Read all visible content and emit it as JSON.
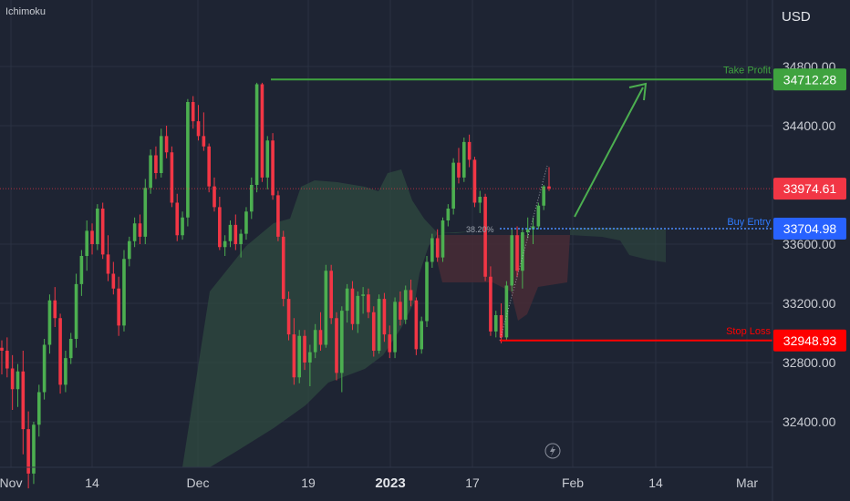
{
  "indicator_label": "Ichimoku",
  "currency": "USD",
  "colors": {
    "background": "#1e2433",
    "grid": "#2a3142",
    "text": "#c9ccd3",
    "up": "#4caf50",
    "down": "#f23645",
    "take_profit": "#3fa33f",
    "buy_entry": "#2862ff",
    "stop_loss": "#ff0000",
    "cloud_green": "#2f4a40",
    "cloud_red": "#4a2c36",
    "current_price": "#f23645"
  },
  "chart_data": {
    "type": "candlestick",
    "x_ticks": [
      "Nov",
      "14",
      "Dec",
      "19",
      "2023",
      "17",
      "Feb",
      "14",
      "Mar"
    ],
    "y_ticks": [
      "34800.00",
      "34400.00",
      "33600.00",
      "33200.00",
      "32800.00",
      "32400.00"
    ],
    "ylim": [
      32000,
      35100
    ],
    "candles": [
      [
        32900,
        32950,
        32720,
        32880
      ],
      [
        32880,
        32970,
        32700,
        32760
      ],
      [
        32760,
        32850,
        32480,
        32620
      ],
      [
        32620,
        32790,
        32500,
        32740
      ],
      [
        32740,
        32880,
        32180,
        32350
      ],
      [
        32350,
        32470,
        31950,
        32050
      ],
      [
        32050,
        32400,
        31980,
        32380
      ],
      [
        32380,
        32650,
        32300,
        32600
      ],
      [
        32600,
        32960,
        32550,
        32920
      ],
      [
        32920,
        33260,
        32860,
        33220
      ],
      [
        33220,
        33310,
        33040,
        33100
      ],
      [
        33100,
        33130,
        32590,
        32650
      ],
      [
        32650,
        32880,
        32600,
        32830
      ],
      [
        32830,
        33000,
        32790,
        32960
      ],
      [
        32960,
        33400,
        32900,
        33330
      ],
      [
        33330,
        33560,
        33250,
        33520
      ],
      [
        33520,
        33760,
        33420,
        33690
      ],
      [
        33690,
        33740,
        33530,
        33600
      ],
      [
        33600,
        33870,
        33560,
        33840
      ],
      [
        33840,
        33880,
        33500,
        33530
      ],
      [
        33530,
        33660,
        33350,
        33400
      ],
      [
        33400,
        33480,
        33260,
        33300
      ],
      [
        33300,
        33380,
        32980,
        33050
      ],
      [
        33050,
        33560,
        33010,
        33500
      ],
      [
        33500,
        33650,
        33450,
        33620
      ],
      [
        33620,
        33780,
        33580,
        33740
      ],
      [
        33740,
        33800,
        33600,
        33650
      ],
      [
        33650,
        34040,
        33600,
        33980
      ],
      [
        33980,
        34240,
        33940,
        34200
      ],
      [
        34200,
        34260,
        34040,
        34080
      ],
      [
        34080,
        34380,
        34050,
        34330
      ],
      [
        34330,
        34400,
        34180,
        34220
      ],
      [
        34220,
        34260,
        33850,
        33880
      ],
      [
        33880,
        33940,
        33620,
        33660
      ],
      [
        33660,
        33820,
        33630,
        33780
      ],
      [
        33780,
        34580,
        33720,
        34560
      ],
      [
        34560,
        34600,
        34380,
        34430
      ],
      [
        34430,
        34540,
        34300,
        34330
      ],
      [
        34330,
        34490,
        34230,
        34260
      ],
      [
        34260,
        34280,
        33950,
        33990
      ],
      [
        33990,
        34050,
        33820,
        33850
      ],
      [
        33850,
        33920,
        33560,
        33580
      ],
      [
        33580,
        33660,
        33520,
        33620
      ],
      [
        33620,
        33760,
        33580,
        33730
      ],
      [
        33730,
        33800,
        33560,
        33600
      ],
      [
        33600,
        33700,
        33510,
        33670
      ],
      [
        33670,
        33850,
        33630,
        33820
      ],
      [
        33820,
        34050,
        33770,
        34000
      ],
      [
        34000,
        34690,
        33950,
        34680
      ],
      [
        34680,
        34690,
        34020,
        34050
      ],
      [
        34050,
        34330,
        33970,
        34300
      ],
      [
        34300,
        34350,
        33900,
        33930
      ],
      [
        33930,
        33960,
        33620,
        33650
      ],
      [
        33650,
        33690,
        33180,
        33230
      ],
      [
        33230,
        33280,
        32950,
        32990
      ],
      [
        32990,
        33100,
        32650,
        32700
      ],
      [
        32700,
        33020,
        32660,
        32980
      ],
      [
        32980,
        33020,
        32750,
        32800
      ],
      [
        32800,
        32920,
        32640,
        32870
      ],
      [
        32870,
        33060,
        32830,
        33020
      ],
      [
        33020,
        33140,
        32880,
        32920
      ],
      [
        32920,
        33460,
        32900,
        33420
      ],
      [
        33420,
        33460,
        33060,
        33100
      ],
      [
        33100,
        33140,
        32680,
        32730
      ],
      [
        32730,
        33180,
        32600,
        33150
      ],
      [
        33150,
        33330,
        33070,
        33300
      ],
      [
        33300,
        33350,
        33020,
        33060
      ],
      [
        33060,
        33280,
        33000,
        33250
      ],
      [
        33250,
        33310,
        33130,
        33260
      ],
      [
        33260,
        33300,
        33100,
        33140
      ],
      [
        33140,
        33180,
        32840,
        32880
      ],
      [
        32880,
        33260,
        32860,
        33230
      ],
      [
        33230,
        33270,
        32940,
        32990
      ],
      [
        32990,
        33050,
        32830,
        32870
      ],
      [
        32870,
        33240,
        32830,
        33210
      ],
      [
        33210,
        33280,
        33050,
        33090
      ],
      [
        33090,
        33320,
        33060,
        33290
      ],
      [
        33290,
        33360,
        33180,
        33220
      ],
      [
        33220,
        33240,
        32850,
        32890
      ],
      [
        32890,
        33110,
        32860,
        33080
      ],
      [
        33080,
        33520,
        33040,
        33480
      ],
      [
        33480,
        33670,
        33440,
        33640
      ],
      [
        33640,
        33700,
        33480,
        33510
      ],
      [
        33510,
        33780,
        33480,
        33760
      ],
      [
        33760,
        33870,
        33720,
        33840
      ],
      [
        33840,
        34180,
        33800,
        34150
      ],
      [
        34150,
        34250,
        34010,
        34050
      ],
      [
        34050,
        34320,
        34020,
        34290
      ],
      [
        34290,
        34340,
        34120,
        34170
      ],
      [
        34170,
        34190,
        33850,
        33880
      ],
      [
        33880,
        33960,
        33810,
        33920
      ],
      [
        33920,
        33940,
        33350,
        33380
      ],
      [
        33380,
        33450,
        32980,
        33010
      ],
      [
        33010,
        33150,
        32970,
        33120
      ],
      [
        33120,
        33200,
        32930,
        32970
      ],
      [
        32970,
        33350,
        32950,
        33320
      ],
      [
        33320,
        33700,
        33280,
        33660
      ],
      [
        33660,
        33720,
        33380,
        33420
      ],
      [
        33420,
        33700,
        33300,
        33680
      ],
      [
        33680,
        33780,
        33640,
        33700
      ],
      [
        33700,
        33780,
        33600,
        33720
      ],
      [
        33720,
        33880,
        33700,
        33860
      ],
      [
        33860,
        34000,
        33830,
        33990
      ],
      [
        33990,
        34120,
        33960,
        33975
      ]
    ],
    "levels": {
      "take_profit": {
        "label": "Take Profit",
        "value": "34712.28"
      },
      "buy_entry": {
        "label": "Buy Entry",
        "value": "33704.98"
      },
      "stop_loss": {
        "label": "Stop Loss",
        "value": "32948.93"
      },
      "current": {
        "value": "33974.61"
      },
      "fib": {
        "label": "38.20%"
      }
    }
  }
}
